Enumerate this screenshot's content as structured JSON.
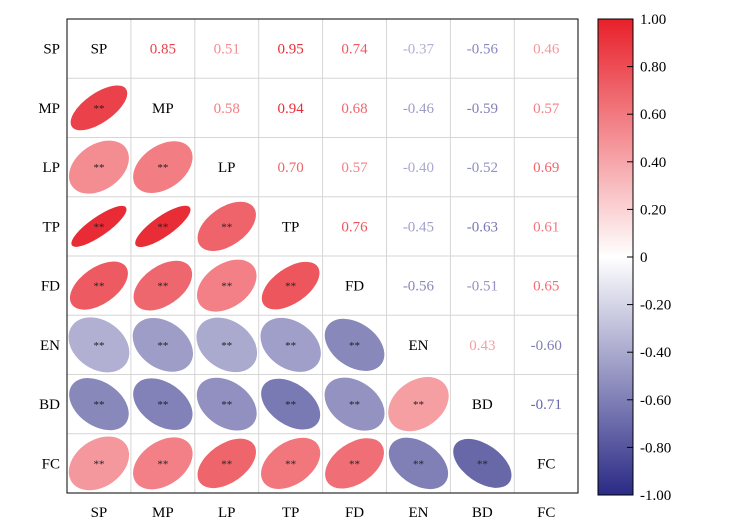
{
  "chart_data": {
    "type": "heatmap",
    "variables": [
      "SP",
      "MP",
      "LP",
      "TP",
      "FD",
      "EN",
      "BD",
      "FC"
    ],
    "matrix": [
      [
        1.0,
        0.85,
        0.51,
        0.95,
        0.74,
        -0.37,
        -0.56,
        0.46
      ],
      [
        0.85,
        1.0,
        0.58,
        0.94,
        0.68,
        -0.46,
        -0.59,
        0.57
      ],
      [
        0.51,
        0.58,
        1.0,
        0.7,
        0.57,
        -0.4,
        -0.52,
        0.69
      ],
      [
        0.95,
        0.94,
        0.7,
        1.0,
        0.76,
        -0.45,
        -0.63,
        0.61
      ],
      [
        0.74,
        0.68,
        0.57,
        0.76,
        1.0,
        -0.56,
        -0.51,
        0.65
      ],
      [
        -0.37,
        -0.46,
        -0.4,
        -0.45,
        -0.56,
        1.0,
        0.43,
        -0.6
      ],
      [
        -0.56,
        -0.59,
        -0.52,
        -0.63,
        -0.51,
        0.43,
        1.0,
        -0.71
      ],
      [
        0.46,
        0.57,
        0.69,
        0.61,
        0.65,
        -0.6,
        -0.71,
        1.0
      ]
    ],
    "significance_mark": "**",
    "lower_triangle": "ellipse",
    "upper_triangle": "number",
    "diagonal": "variable name",
    "colorbar": {
      "range": [
        -1,
        1
      ],
      "ticks": [
        "1.00",
        "0.80",
        "0.60",
        "0.40",
        "0.20",
        "0",
        "-0.20",
        "-0.40",
        "-0.60",
        "-0.80",
        "-1.00"
      ],
      "colors": {
        "low": "#2b2a86",
        "mid": "#ffffff",
        "high": "#e8202a"
      }
    },
    "grid": true
  }
}
